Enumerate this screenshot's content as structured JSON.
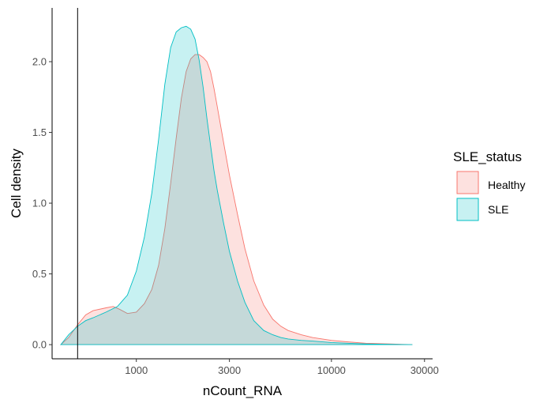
{
  "chart_data": {
    "type": "area",
    "xlabel": "nCount_RNA",
    "ylabel": "Cell density",
    "x_scale": "log10",
    "xlim": [
      370,
      33000
    ],
    "ylim": [
      -0.1,
      2.38
    ],
    "x_ticks": [
      1000,
      3000,
      10000,
      30000
    ],
    "x_tick_labels": [
      "1000",
      "3000",
      "10000",
      "30000"
    ],
    "y_ticks": [
      0.0,
      0.5,
      1.0,
      1.5,
      2.0
    ],
    "y_tick_labels": [
      "0.0",
      "0.5",
      "1.0",
      "1.5",
      "2.0"
    ],
    "grid": false,
    "vline": {
      "x": 500
    },
    "legend": {
      "title": "SLE_status",
      "position": "right"
    },
    "series": [
      {
        "name": "Healthy",
        "fill": "#F8766D",
        "stroke": "#F8766D",
        "fill_opacity": 0.22,
        "x": [
          410,
          450,
          500,
          550,
          600,
          700,
          760,
          820,
          900,
          1000,
          1100,
          1200,
          1300,
          1400,
          1500,
          1600,
          1700,
          1800,
          1900,
          2000,
          2100,
          2200,
          2300,
          2400,
          2500,
          2600,
          2800,
          3000,
          3300,
          3600,
          4000,
          4500,
          5000,
          5500,
          6000,
          7000,
          8000,
          10000,
          12000,
          15000,
          20000,
          26000
        ],
        "y": [
          0.0,
          0.05,
          0.14,
          0.21,
          0.24,
          0.26,
          0.27,
          0.25,
          0.22,
          0.23,
          0.29,
          0.39,
          0.56,
          0.82,
          1.14,
          1.46,
          1.74,
          1.93,
          2.02,
          2.05,
          2.05,
          2.03,
          2.0,
          1.93,
          1.81,
          1.68,
          1.43,
          1.2,
          0.92,
          0.68,
          0.45,
          0.28,
          0.18,
          0.13,
          0.1,
          0.07,
          0.05,
          0.03,
          0.02,
          0.01,
          0.005,
          0.0
        ]
      },
      {
        "name": "SLE",
        "fill": "#00BFC4",
        "stroke": "#00BFC4",
        "fill_opacity": 0.22,
        "x": [
          410,
          450,
          500,
          550,
          600,
          700,
          800,
          900,
          1000,
          1100,
          1200,
          1300,
          1400,
          1500,
          1600,
          1700,
          1800,
          1900,
          2000,
          2100,
          2200,
          2300,
          2400,
          2500,
          2600,
          2800,
          3000,
          3300,
          3600,
          4000,
          4500,
          5000,
          5500,
          6000,
          7000,
          8000,
          10000,
          12000,
          15000,
          20000,
          26000
        ],
        "y": [
          0.0,
          0.07,
          0.13,
          0.17,
          0.19,
          0.23,
          0.27,
          0.35,
          0.52,
          0.76,
          1.07,
          1.45,
          1.84,
          2.1,
          2.21,
          2.24,
          2.25,
          2.23,
          2.16,
          2.01,
          1.82,
          1.6,
          1.41,
          1.23,
          1.09,
          0.86,
          0.66,
          0.45,
          0.3,
          0.17,
          0.1,
          0.07,
          0.05,
          0.04,
          0.03,
          0.025,
          0.015,
          0.01,
          0.005,
          0.002,
          0.0
        ]
      }
    ]
  }
}
